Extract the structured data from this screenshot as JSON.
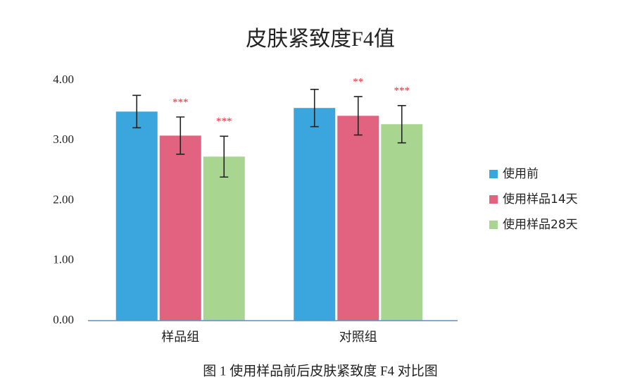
{
  "chart_data": {
    "type": "bar",
    "title": "皮肤紧致度F4值",
    "caption": "图 1  使用样品前后皮肤紧致度 F4 对比图",
    "categories": [
      "样品组",
      "对照组"
    ],
    "series": [
      {
        "name": "使用前",
        "color": "#3aa6dd",
        "values": [
          3.48,
          3.54
        ],
        "errors": [
          0.27,
          0.31
        ]
      },
      {
        "name": "使用样品14天",
        "color": "#e2637f",
        "values": [
          3.08,
          3.41
        ],
        "errors": [
          0.31,
          0.32
        ],
        "significance": [
          "***",
          "**"
        ]
      },
      {
        "name": "使用样品28天",
        "color": "#a8d690",
        "values": [
          2.73,
          3.27
        ],
        "errors": [
          0.34,
          0.31
        ],
        "significance": [
          "***",
          "***"
        ]
      }
    ],
    "ylim": [
      0,
      4
    ],
    "yticks": [
      {
        "value": 0,
        "label": "0.00"
      },
      {
        "value": 1,
        "label": "1.00"
      },
      {
        "value": 2,
        "label": "2.00"
      },
      {
        "value": 3,
        "label": "3.00"
      },
      {
        "value": 4,
        "label": "4.00"
      }
    ],
    "legend": "right"
  }
}
